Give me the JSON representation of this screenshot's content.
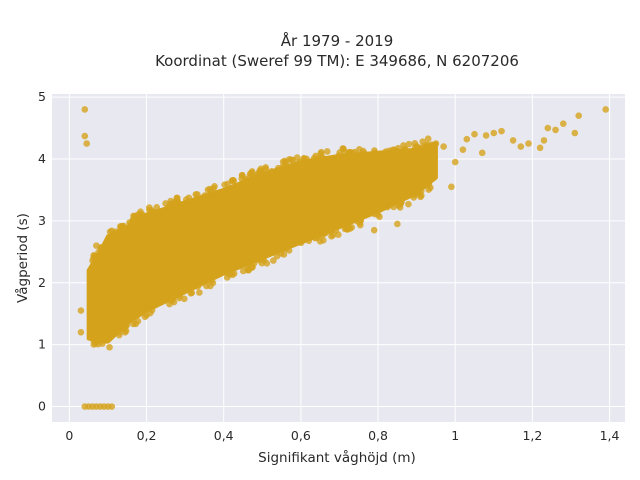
{
  "chart_data": {
    "type": "scatter",
    "title": "År 1979 - 2019",
    "subtitle": "Koordinat (Sweref 99 TM): E 349686, N 6207206",
    "xlabel": "Signifikant våghöjd (m)",
    "ylabel": "Vågperiod (s)",
    "xlim": [
      -0.045,
      1.44
    ],
    "ylim": [
      -0.25,
      5.05
    ],
    "x_ticks": [
      0,
      0.2,
      0.4,
      0.6,
      0.8,
      1,
      1.2,
      1.4
    ],
    "x_tick_labels": [
      "0",
      "0,2",
      "0,4",
      "0,6",
      "0,8",
      "1",
      "1,2",
      "1,4"
    ],
    "y_ticks": [
      0,
      1,
      2,
      3,
      4,
      5
    ],
    "y_tick_labels": [
      "0",
      "1",
      "2",
      "3",
      "4",
      "5"
    ],
    "grid": true,
    "marker_color": "#d4a21b",
    "plot_background": "#e8e8f0",
    "points": [
      [
        0.04,
        4.8
      ],
      [
        0.04,
        4.37
      ],
      [
        0.045,
        4.25
      ],
      [
        1.39,
        4.8
      ],
      [
        1.32,
        4.7
      ],
      [
        1.28,
        4.57
      ],
      [
        1.31,
        4.42
      ],
      [
        1.24,
        4.5
      ],
      [
        1.26,
        4.47
      ],
      [
        1.23,
        4.3
      ],
      [
        1.22,
        4.18
      ],
      [
        1.19,
        4.25
      ],
      [
        1.17,
        4.2
      ],
      [
        1.15,
        4.3
      ],
      [
        1.12,
        4.45
      ],
      [
        1.1,
        4.42
      ],
      [
        1.08,
        4.38
      ],
      [
        1.05,
        4.4
      ],
      [
        1.03,
        4.32
      ],
      [
        1.07,
        4.1
      ],
      [
        1.02,
        4.15
      ],
      [
        1.0,
        3.95
      ],
      [
        0.99,
        3.55
      ],
      [
        0.95,
        4.25
      ],
      [
        0.93,
        4.2
      ],
      [
        0.97,
        4.2
      ],
      [
        0.04,
        0.0
      ],
      [
        0.05,
        0.0
      ],
      [
        0.06,
        0.0
      ],
      [
        0.07,
        0.0
      ],
      [
        0.08,
        0.0
      ],
      [
        0.09,
        0.0
      ],
      [
        0.1,
        0.0
      ],
      [
        0.11,
        0.0
      ],
      [
        0.03,
        1.55
      ],
      [
        0.03,
        1.2
      ],
      [
        0.07,
        2.6
      ],
      [
        0.12,
        1.55
      ],
      [
        0.2,
        2.9
      ],
      [
        0.85,
        2.95
      ],
      [
        0.79,
        2.85
      ]
    ],
    "density_band": {
      "x": [
        0.05,
        0.08,
        0.1,
        0.15,
        0.2,
        0.3,
        0.4,
        0.5,
        0.6,
        0.7,
        0.8,
        0.9,
        0.95
      ],
      "y_lower": [
        1.1,
        1.05,
        1.05,
        1.35,
        1.55,
        1.85,
        2.15,
        2.4,
        2.65,
        2.9,
        3.15,
        3.45,
        3.7
      ],
      "y_upper": [
        2.2,
        2.5,
        2.75,
        2.9,
        3.1,
        3.3,
        3.5,
        3.75,
        3.95,
        4.05,
        4.1,
        4.15,
        4.25
      ]
    }
  }
}
